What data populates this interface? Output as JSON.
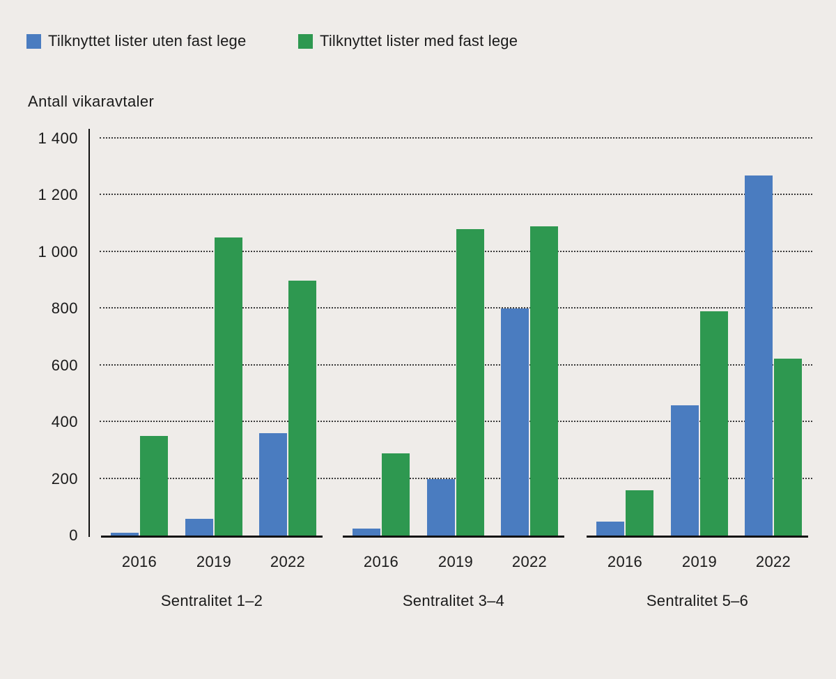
{
  "legend": {
    "items": [
      {
        "label": "Tilknyttet lister uten fast lege",
        "color": "#4A7CC0"
      },
      {
        "label": "Tilknyttet lister med fast lege",
        "color": "#2E9850"
      }
    ]
  },
  "chart_data": {
    "type": "bar",
    "title": "Antall vikaravtaler",
    "ylabel": "Antall vikaravtaler",
    "xlabel": "",
    "ylim": [
      0,
      1400
    ],
    "yticks": [
      0,
      200,
      400,
      600,
      800,
      1000,
      1200,
      1400
    ],
    "ytick_labels": [
      "0",
      "200",
      "400",
      "600",
      "800",
      "1 000",
      "1 200",
      "1 400"
    ],
    "grid": "horizontal-dotted",
    "legend_position": "top-left",
    "categories": [
      "2016",
      "2019",
      "2022"
    ],
    "group_labels": [
      "Sentralitet 1–2",
      "Sentralitet 3–4",
      "Sentralitet 5–6"
    ],
    "series": [
      {
        "name": "Tilknyttet lister uten fast lege",
        "color": "#4A7CC0",
        "values_by_group": [
          [
            10,
            60,
            360
          ],
          [
            25,
            200,
            800
          ],
          [
            50,
            460,
            1270
          ]
        ]
      },
      {
        "name": "Tilknyttet lister med fast lege",
        "color": "#2E9850",
        "values_by_group": [
          [
            350,
            1050,
            900
          ],
          [
            290,
            1080,
            1090
          ],
          [
            160,
            790,
            625
          ]
        ]
      }
    ]
  }
}
